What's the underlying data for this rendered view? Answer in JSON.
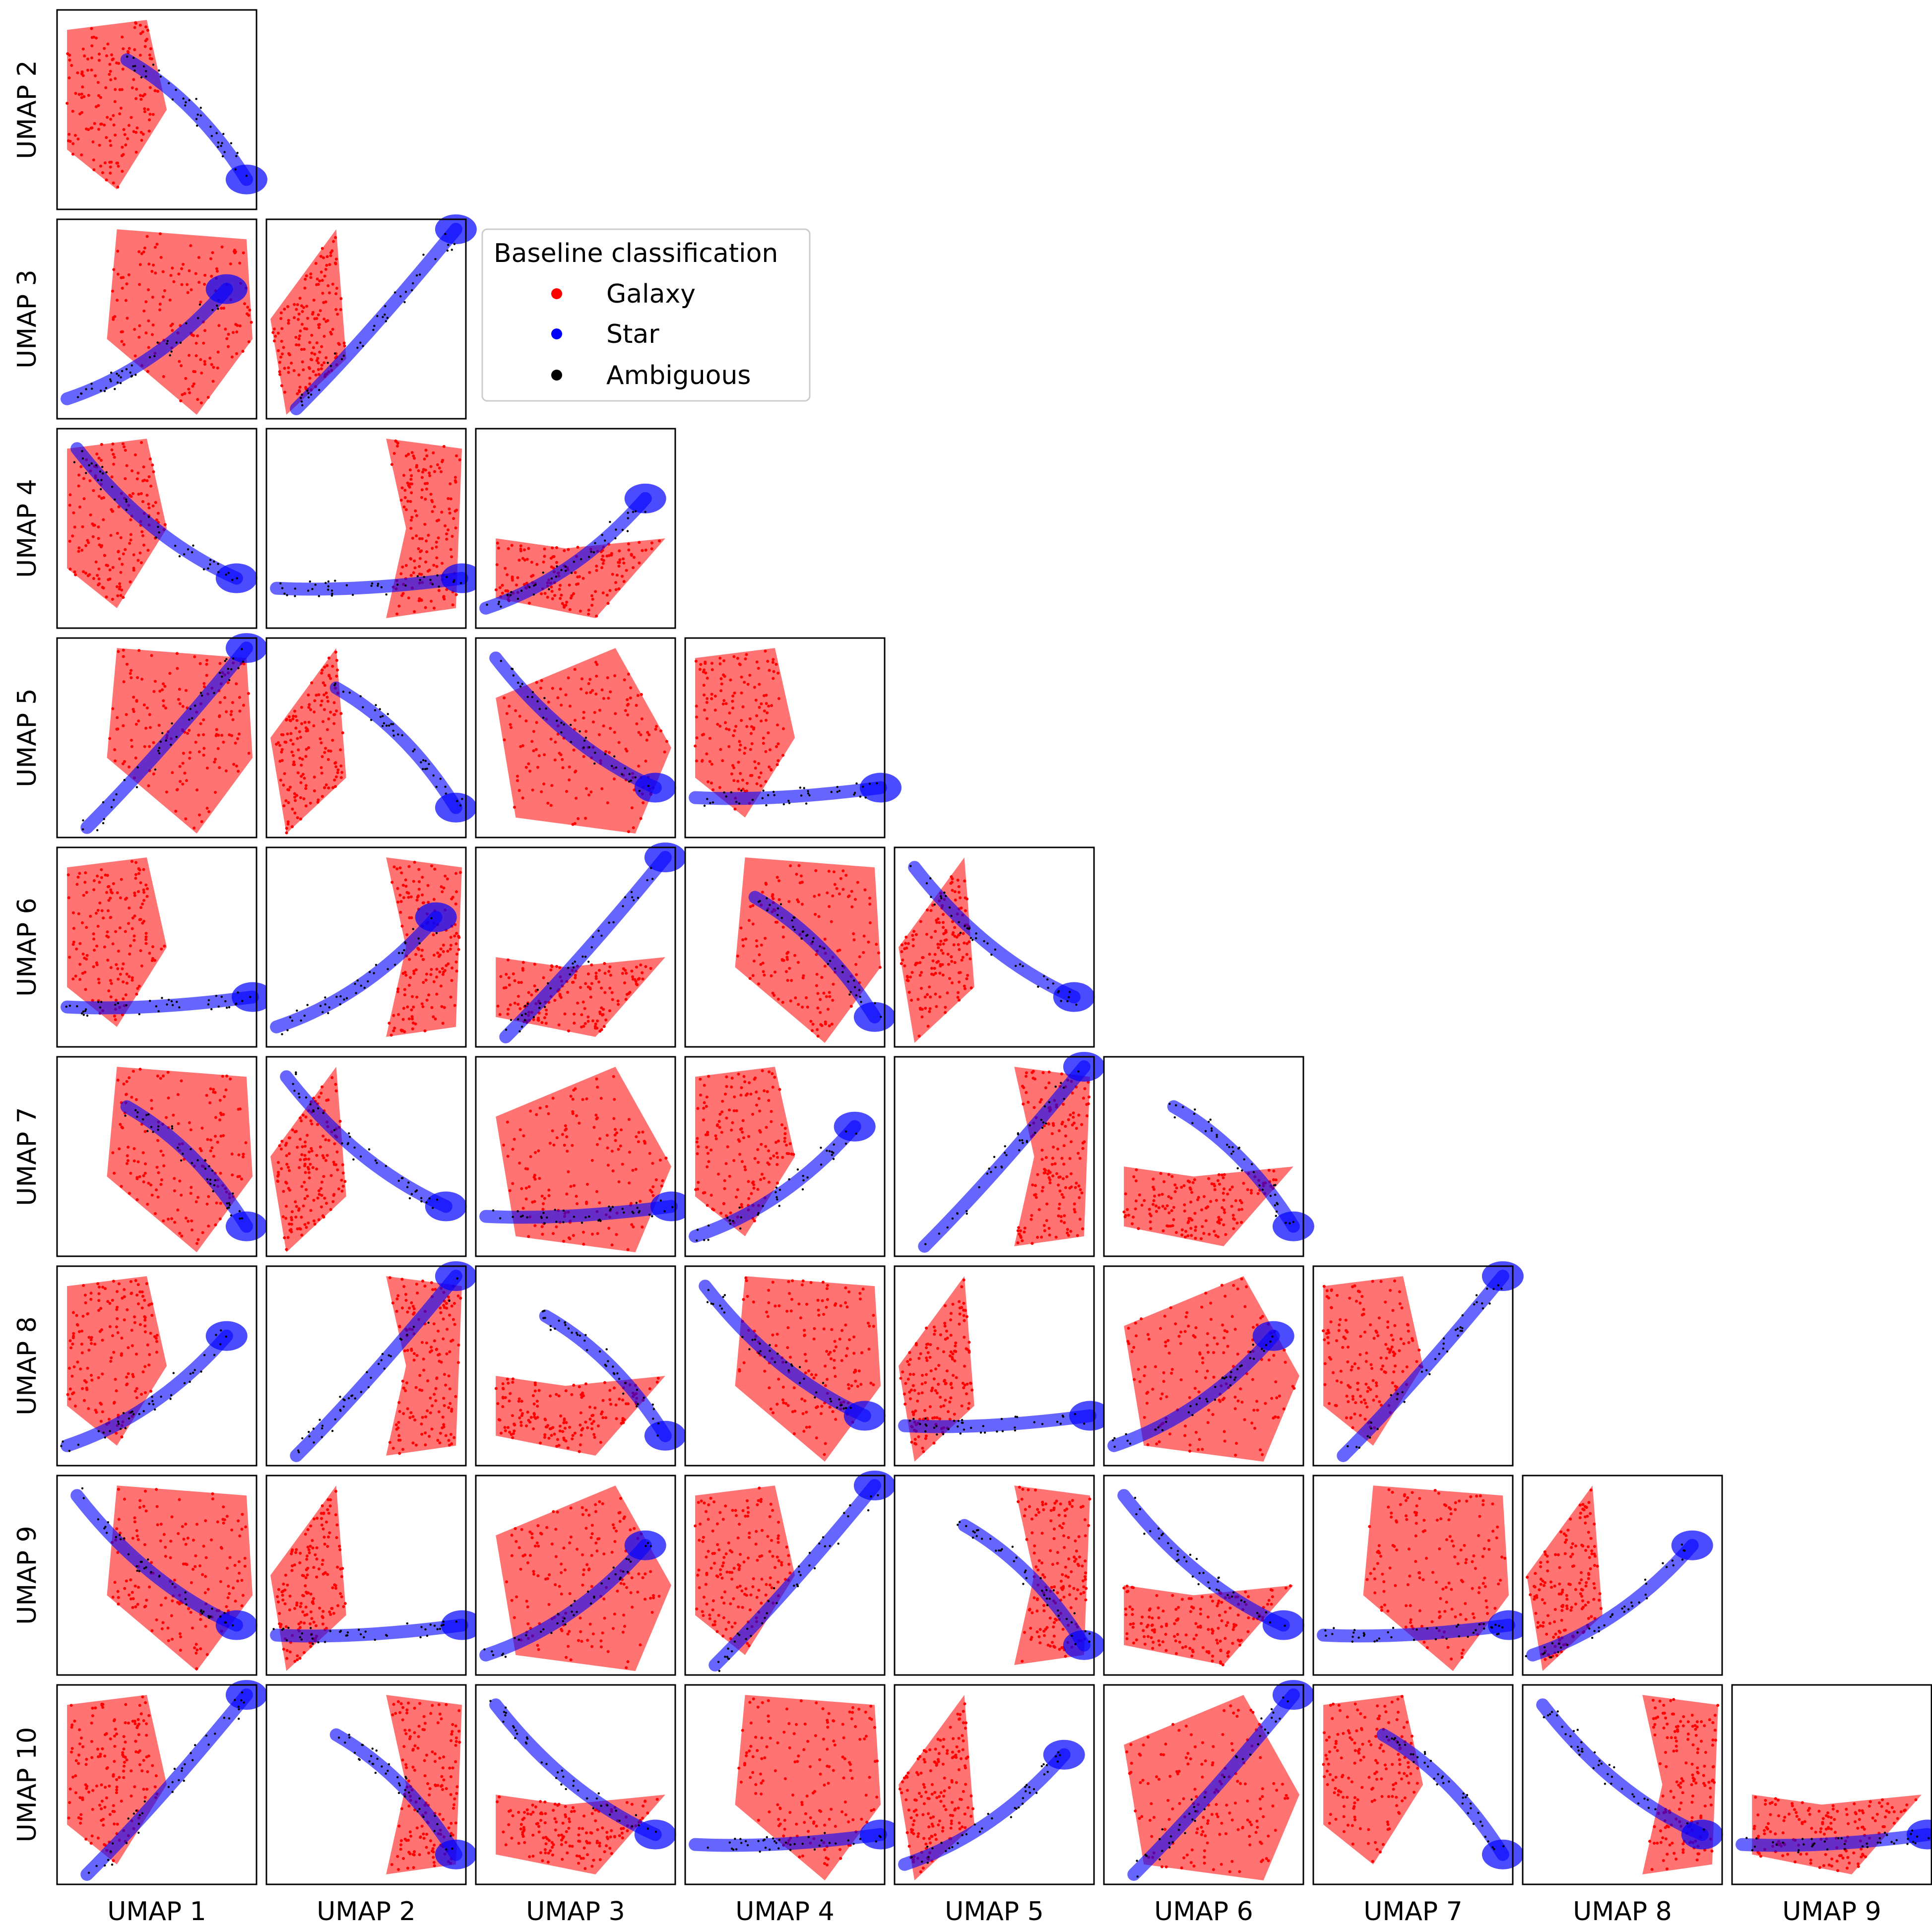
{
  "chart_data": {
    "type": "scatter",
    "layout": "corner-pair-plot",
    "grid": false,
    "axes_labels": [
      "UMAP 1",
      "UMAP 2",
      "UMAP 3",
      "UMAP 4",
      "UMAP 5",
      "UMAP 6",
      "UMAP 7",
      "UMAP 8",
      "UMAP 9",
      "UMAP 10"
    ],
    "x_axis_labels": [
      "UMAP 1",
      "UMAP 2",
      "UMAP 3",
      "UMAP 4",
      "UMAP 5",
      "UMAP 6",
      "UMAP 7",
      "UMAP 8",
      "UMAP 9"
    ],
    "y_axis_labels": [
      "UMAP 2",
      "UMAP 3",
      "UMAP 4",
      "UMAP 5",
      "UMAP 6",
      "UMAP 7",
      "UMAP 8",
      "UMAP 9",
      "UMAP 10"
    ],
    "legend": {
      "title": "Baseline classification",
      "placement": "upper-center",
      "entries": [
        {
          "name": "Galaxy",
          "color": "#ff0000"
        },
        {
          "name": "Star",
          "color": "#0000ff"
        },
        {
          "name": "Ambiguous",
          "color": "#000000"
        }
      ]
    }
  }
}
